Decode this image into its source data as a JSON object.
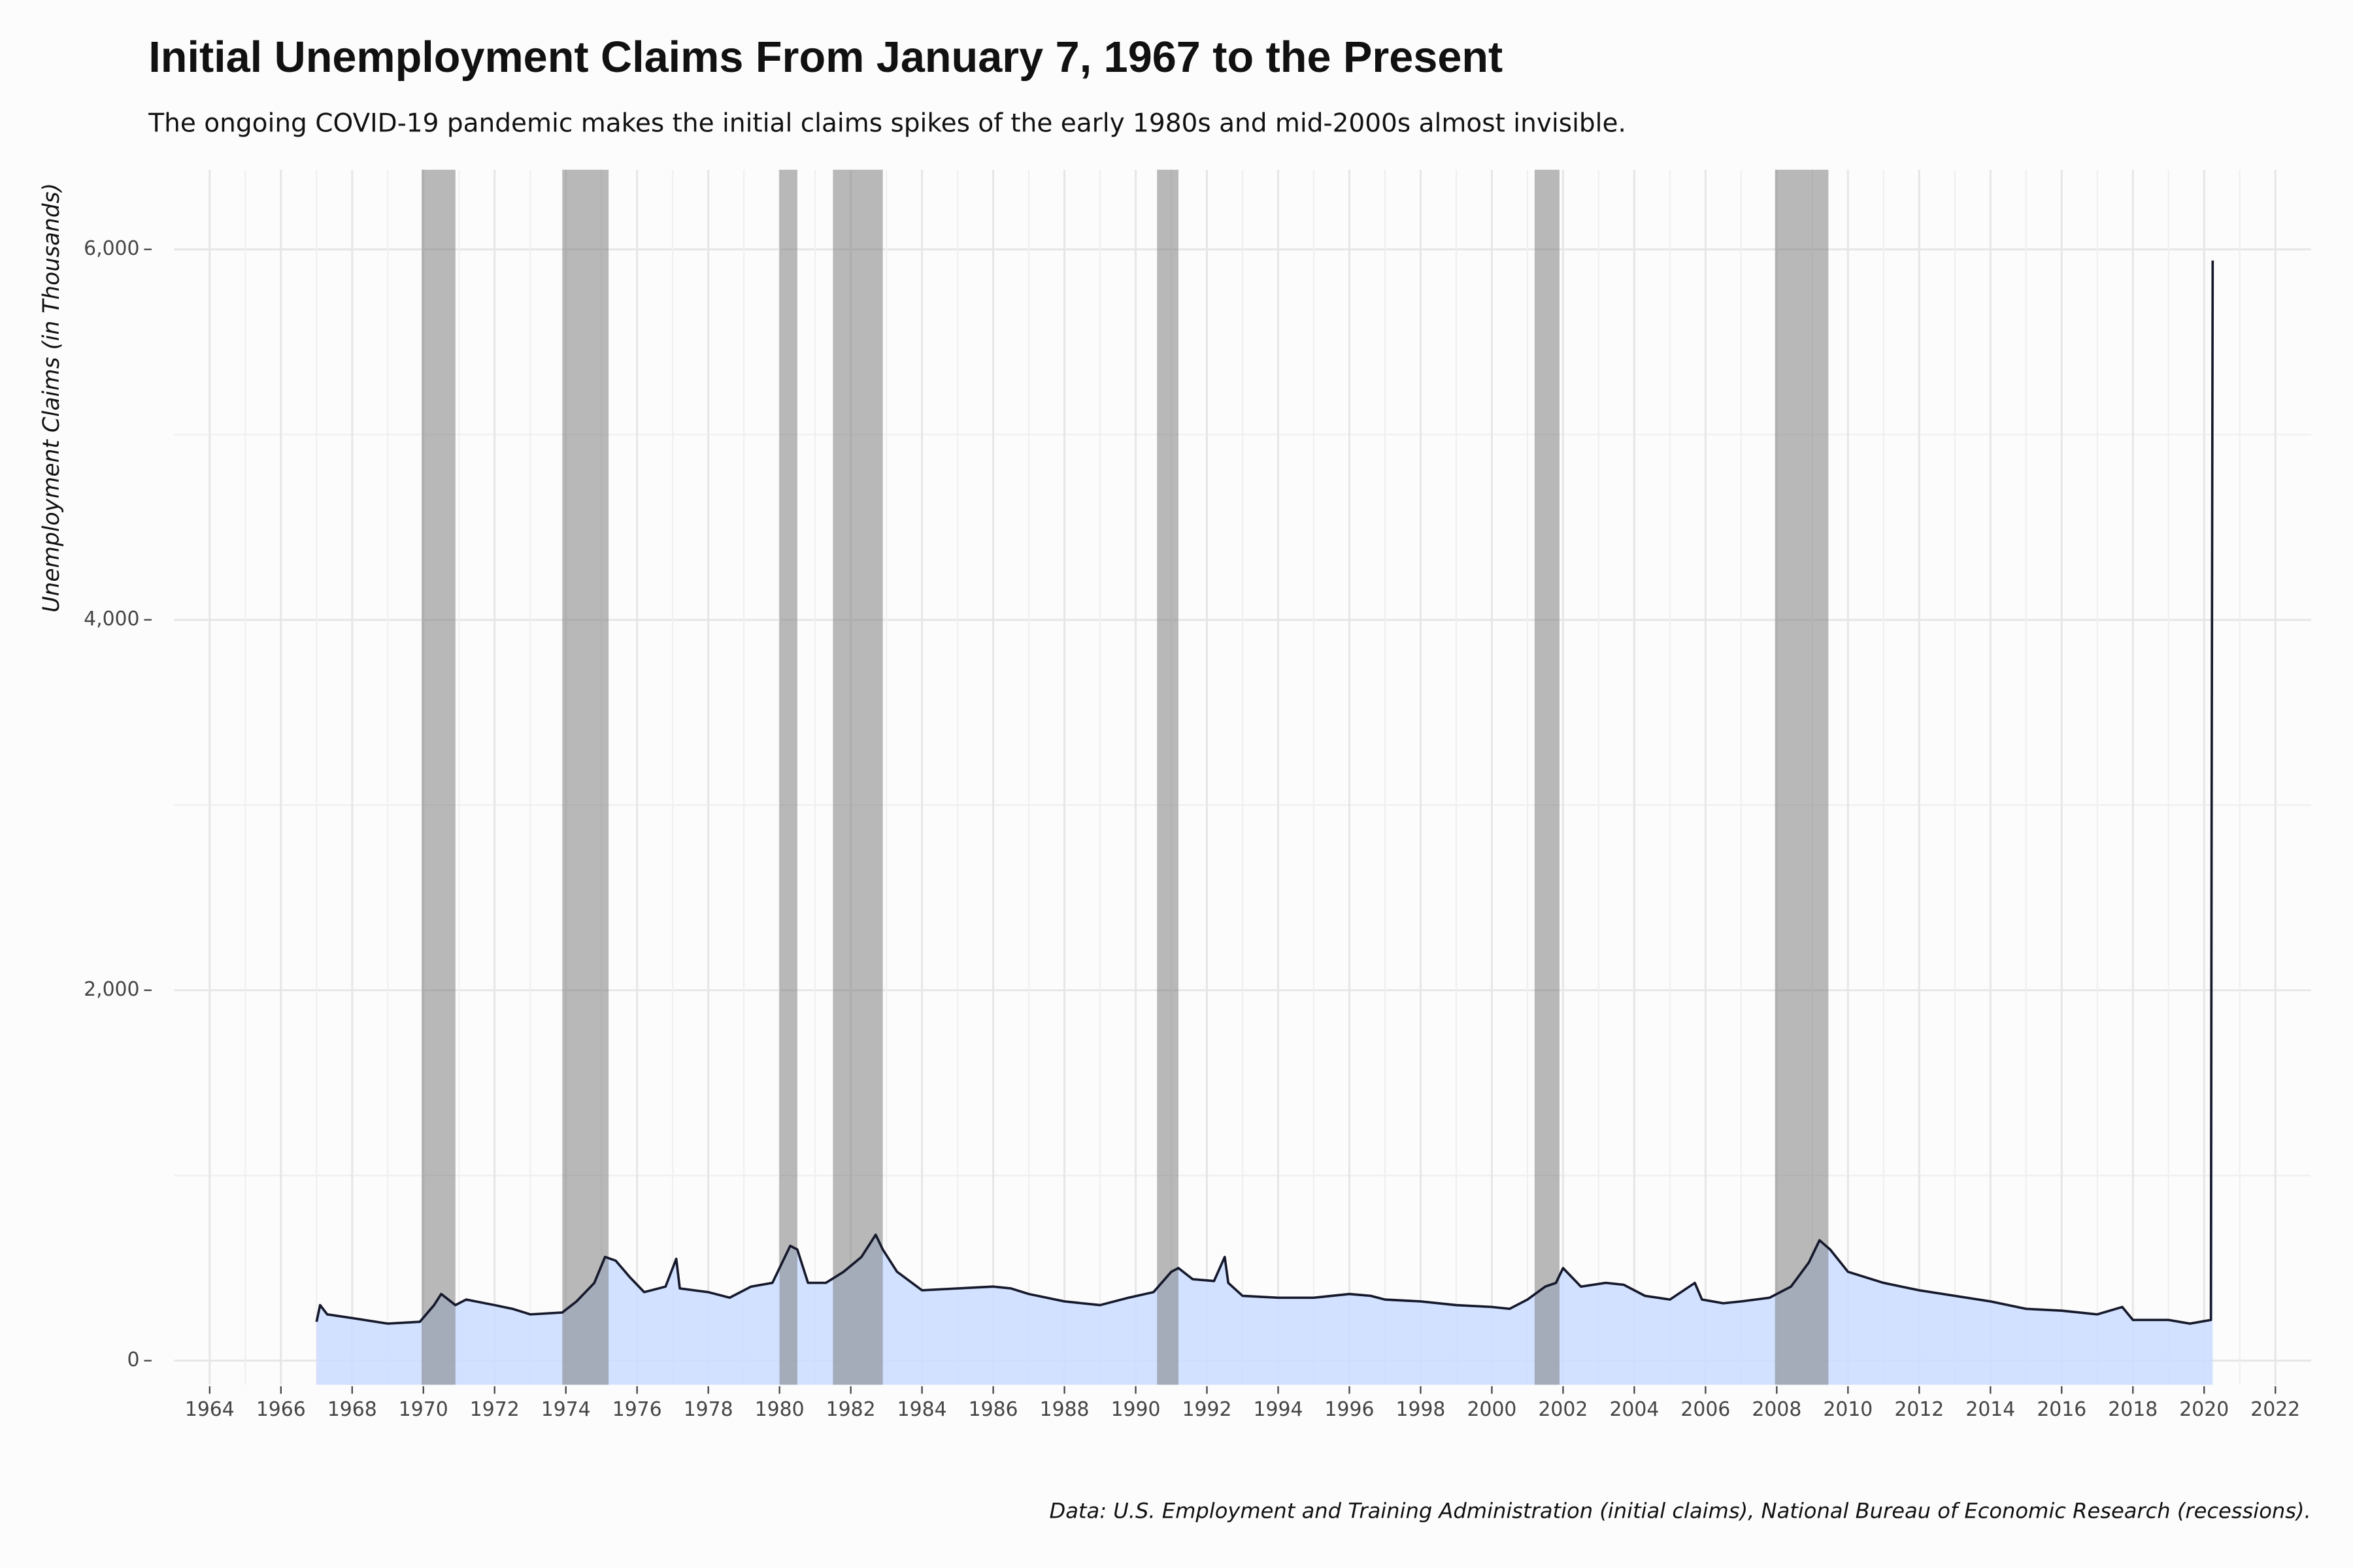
{
  "chart_data": {
    "type": "line",
    "title": "Initial Unemployment Claims From January 7, 1967 to the Present",
    "subtitle": "The ongoing COVID-19 pandemic makes the initial claims spikes of the early 1980s and mid-2000s almost invisible.",
    "y_label": "Unemployment Claims (in Thousands)",
    "caption": "Data: U.S. Employment and Training Administration (initial claims), National Bureau of Economic Research (recessions).",
    "x": [
      1967.0,
      1967.1,
      1967.3,
      1968.0,
      1969.0,
      1969.9,
      1970.3,
      1970.5,
      1970.9,
      1971.2,
      1972.0,
      1972.5,
      1973.0,
      1973.9,
      1974.3,
      1974.8,
      1975.1,
      1975.4,
      1975.8,
      1976.2,
      1976.8,
      1977.1,
      1977.2,
      1978.0,
      1978.6,
      1979.2,
      1979.8,
      1980.3,
      1980.5,
      1980.8,
      1981.3,
      1981.8,
      1982.3,
      1982.7,
      1982.9,
      1983.3,
      1984.0,
      1985.0,
      1986.0,
      1986.5,
      1987.0,
      1988.0,
      1989.0,
      1989.8,
      1990.5,
      1991.0,
      1991.2,
      1991.6,
      1992.2,
      1992.5,
      1992.6,
      1993.0,
      1994.0,
      1995.0,
      1996.0,
      1996.6,
      1997.0,
      1998.0,
      1999.0,
      2000.0,
      2000.5,
      2001.0,
      2001.5,
      2001.8,
      2002.0,
      2002.5,
      2003.2,
      2003.7,
      2004.3,
      2005.0,
      2005.7,
      2005.9,
      2006.5,
      2007.0,
      2007.8,
      2008.4,
      2008.9,
      2009.2,
      2009.5,
      2010.0,
      2011.0,
      2012.0,
      2013.0,
      2014.0,
      2015.0,
      2016.0,
      2017.0,
      2017.7,
      2018.0,
      2019.0,
      2019.6,
      2020.19,
      2020.21,
      2020.24
    ],
    "values": [
      210,
      300,
      250,
      230,
      200,
      210,
      300,
      360,
      300,
      330,
      300,
      280,
      250,
      260,
      320,
      420,
      560,
      540,
      450,
      370,
      400,
      550,
      390,
      370,
      340,
      400,
      420,
      620,
      600,
      420,
      420,
      480,
      560,
      680,
      600,
      480,
      380,
      390,
      400,
      390,
      360,
      320,
      300,
      340,
      370,
      480,
      500,
      440,
      430,
      560,
      420,
      350,
      340,
      340,
      360,
      350,
      330,
      320,
      300,
      290,
      280,
      330,
      400,
      420,
      500,
      400,
      420,
      410,
      350,
      330,
      420,
      330,
      310,
      320,
      340,
      400,
      530,
      650,
      600,
      480,
      420,
      380,
      350,
      320,
      280,
      270,
      250,
      290,
      220,
      220,
      200,
      220,
      2900,
      5940
    ],
    "line_color": "#16192b",
    "area_color": "#c9dcff",
    "recessions": [
      [
        1969.95,
        1970.9
      ],
      [
        1973.9,
        1975.2
      ],
      [
        1980.0,
        1980.5
      ],
      [
        1981.5,
        1982.9
      ],
      [
        1990.6,
        1991.2
      ],
      [
        2001.2,
        2001.9
      ],
      [
        2007.95,
        2009.45
      ]
    ],
    "recession_color": "#808080",
    "xlim": [
      1963,
      2023
    ],
    "ylim": [
      -130,
      6430
    ],
    "xticks": [
      1964,
      1966,
      1968,
      1970,
      1972,
      1974,
      1976,
      1978,
      1980,
      1982,
      1984,
      1986,
      1988,
      1990,
      1992,
      1994,
      1996,
      1998,
      2000,
      2002,
      2004,
      2006,
      2008,
      2010,
      2012,
      2014,
      2016,
      2018,
      2020,
      2022
    ],
    "yticks": [
      0,
      {
        "value": 2000,
        "label": "2,000"
      },
      {
        "value": 4000,
        "label": "4,000"
      },
      {
        "value": 6000,
        "label": "6,000"
      }
    ],
    "grid": true
  }
}
